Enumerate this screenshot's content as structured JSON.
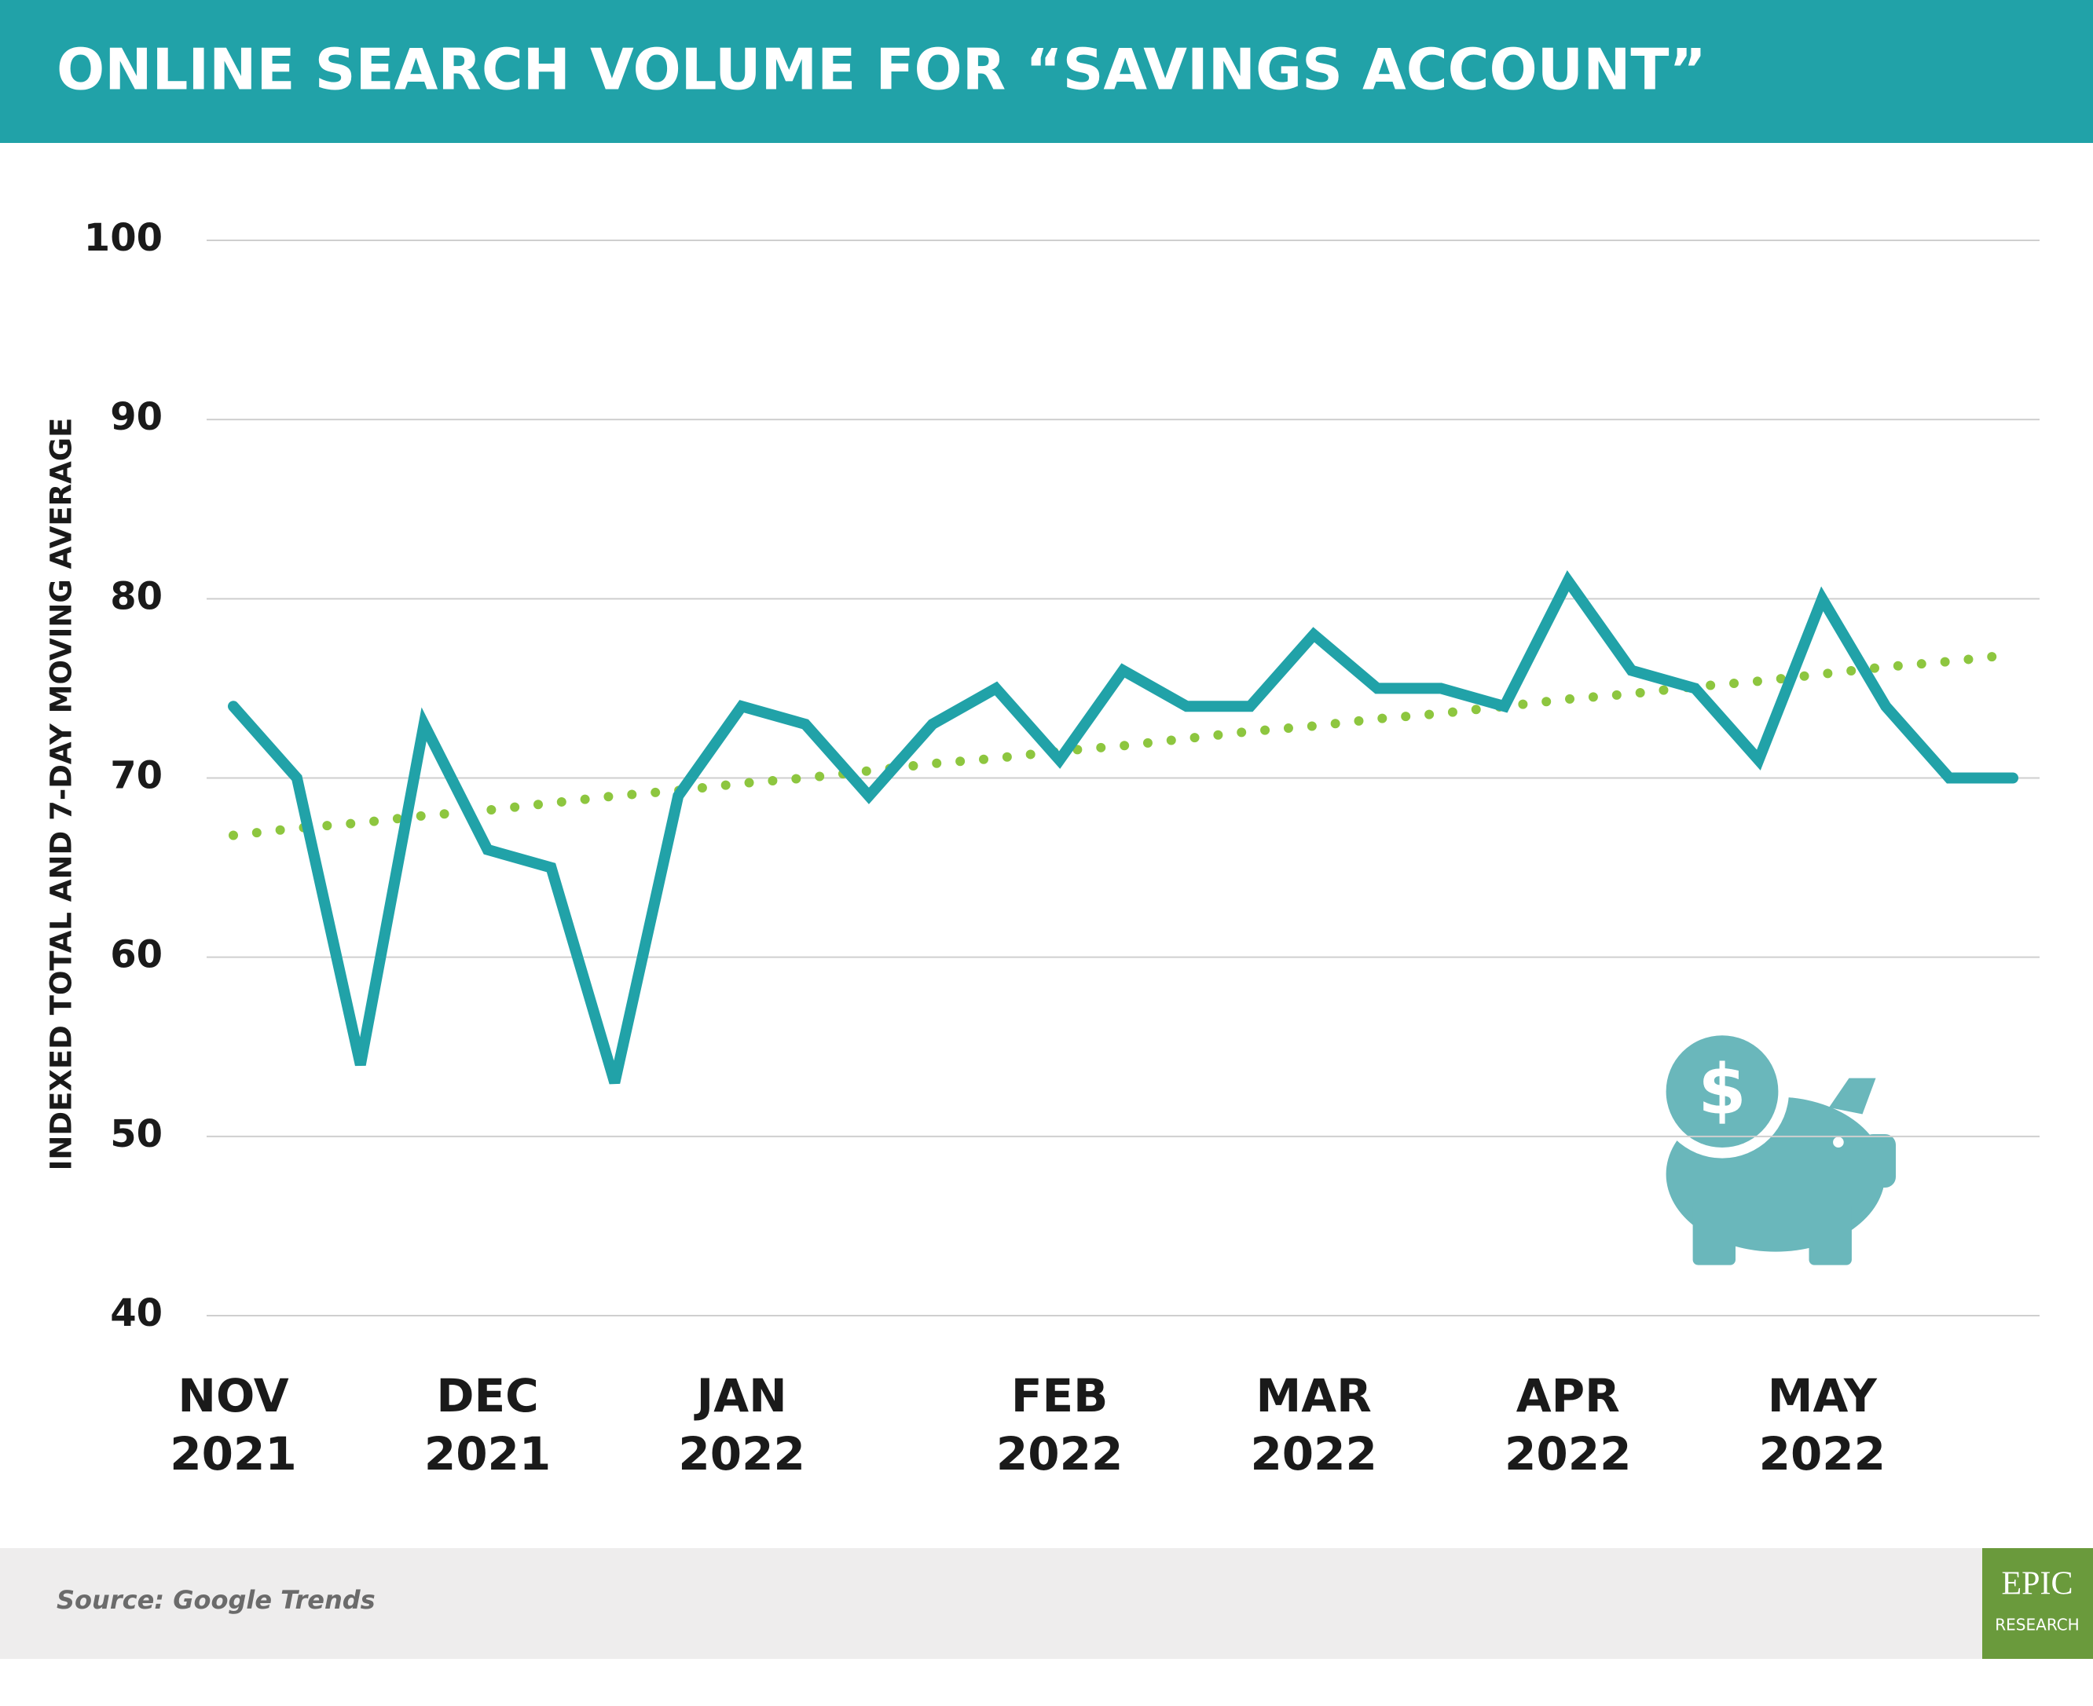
{
  "chart_data": {
    "type": "line",
    "title": "ONLINE SEARCH VOLUME FOR “SAVINGS ACCOUNT”",
    "ylabel": "INDEXED TOTAL AND 7-DAY MOVING AVERAGE",
    "categories": [
      "NOV 2021",
      null,
      null,
      null,
      "DEC 2021",
      null,
      null,
      null,
      "JAN 2022",
      null,
      null,
      null,
      null,
      "FEB 2022",
      null,
      null,
      null,
      "MAR 2022",
      null,
      null,
      null,
      "APR 2022",
      null,
      null,
      null,
      "MAY 2022",
      null,
      null,
      null
    ],
    "series": [
      {
        "color": "#21a2a8",
        "style": "solid",
        "values": [
          74,
          70,
          54,
          73,
          66,
          65,
          53,
          69,
          74,
          73,
          69,
          73,
          75,
          71,
          76,
          74,
          74,
          78,
          75,
          75,
          74,
          81,
          76,
          75,
          71,
          80,
          74,
          70,
          70
        ]
      },
      {
        "color": "#8dc63f",
        "style": "dotted",
        "values": [
          66.8,
          67.2,
          67.5,
          67.9,
          68.2,
          68.6,
          69.0,
          69.3,
          69.7,
          70.0,
          70.4,
          70.8,
          71.1,
          71.5,
          71.8,
          72.2,
          72.6,
          72.9,
          73.3,
          73.6,
          74.0,
          74.4,
          74.7,
          75.1,
          75.4,
          75.8,
          76.2,
          76.5,
          76.9
        ]
      }
    ],
    "ylim": [
      40,
      100
    ],
    "yticks": [
      40,
      50,
      60,
      70,
      80,
      90,
      100
    ],
    "grid": true,
    "source": "Source: Google Trends",
    "logo": [
      "EPIC",
      "RESEARCH"
    ]
  }
}
